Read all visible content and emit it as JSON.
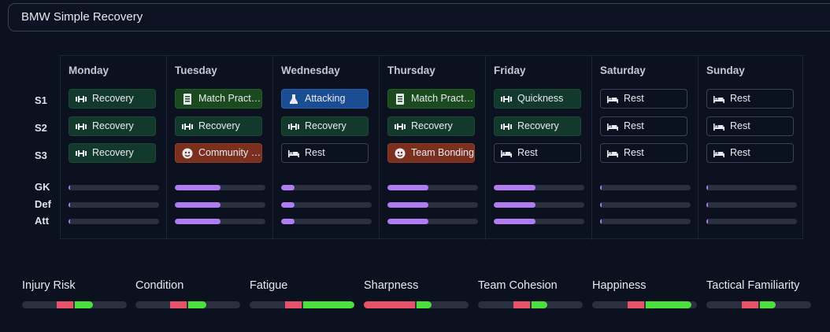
{
  "plan_title": "BMW Simple Recovery",
  "days": [
    "Monday",
    "Tuesday",
    "Wednesday",
    "Thursday",
    "Friday",
    "Saturday",
    "Sunday"
  ],
  "session_labels": [
    "S1",
    "S2",
    "S3"
  ],
  "position_labels": [
    "GK",
    "Def",
    "Att"
  ],
  "sessions": [
    [
      {
        "label": "Recovery",
        "type": "recovery"
      },
      {
        "label": "Recovery",
        "type": "recovery"
      },
      {
        "label": "Recovery",
        "type": "recovery"
      }
    ],
    [
      {
        "label": "Match Practice",
        "type": "match"
      },
      {
        "label": "Recovery",
        "type": "recovery"
      },
      {
        "label": "Community Outreach",
        "type": "social"
      }
    ],
    [
      {
        "label": "Attacking",
        "type": "attack"
      },
      {
        "label": "Recovery",
        "type": "recovery"
      },
      {
        "label": "Rest",
        "type": "rest"
      }
    ],
    [
      {
        "label": "Match Practice",
        "type": "match"
      },
      {
        "label": "Recovery",
        "type": "recovery"
      },
      {
        "label": "Team Bonding",
        "type": "social"
      }
    ],
    [
      {
        "label": "Quickness",
        "type": "quick"
      },
      {
        "label": "Recovery",
        "type": "recovery"
      },
      {
        "label": "Rest",
        "type": "rest"
      }
    ],
    [
      {
        "label": "Rest",
        "type": "rest"
      },
      {
        "label": "Rest",
        "type": "rest"
      },
      {
        "label": "Rest",
        "type": "rest"
      }
    ],
    [
      {
        "label": "Rest",
        "type": "rest"
      },
      {
        "label": "Rest",
        "type": "rest"
      },
      {
        "label": "Rest",
        "type": "rest"
      }
    ]
  ],
  "workload": [
    [
      0.02,
      0.02,
      0.02
    ],
    [
      0.5,
      0.5,
      0.5
    ],
    [
      0.15,
      0.15,
      0.15
    ],
    [
      0.45,
      0.45,
      0.45
    ],
    [
      0.46,
      0.46,
      0.46
    ],
    [
      0.02,
      0.02,
      0.02
    ],
    [
      0.02,
      0.02,
      0.02
    ]
  ],
  "meters": [
    {
      "label": "Injury Risk",
      "red": [
        0.33,
        0.49
      ],
      "green": [
        0.5,
        0.68
      ]
    },
    {
      "label": "Condition",
      "red": [
        0.33,
        0.49
      ],
      "green": [
        0.5,
        0.68
      ]
    },
    {
      "label": "Fatigue",
      "red": [
        0.34,
        0.5
      ],
      "green": [
        0.51,
        1.0
      ]
    },
    {
      "label": "Sharpness",
      "red": [
        0.0,
        0.49
      ],
      "green": [
        0.5,
        0.65
      ]
    },
    {
      "label": "Team Cohesion",
      "red": [
        0.34,
        0.5
      ],
      "green": [
        0.51,
        0.66
      ]
    },
    {
      "label": "Happiness",
      "red": [
        0.34,
        0.5
      ],
      "green": [
        0.51,
        0.95
      ]
    },
    {
      "label": "Tactical Familiarity",
      "red": [
        0.34,
        0.5
      ],
      "green": [
        0.51,
        0.66
      ]
    }
  ],
  "colors": {
    "workload": "#b07cf2",
    "negative": "#e8516a",
    "positive": "#4be03d"
  }
}
